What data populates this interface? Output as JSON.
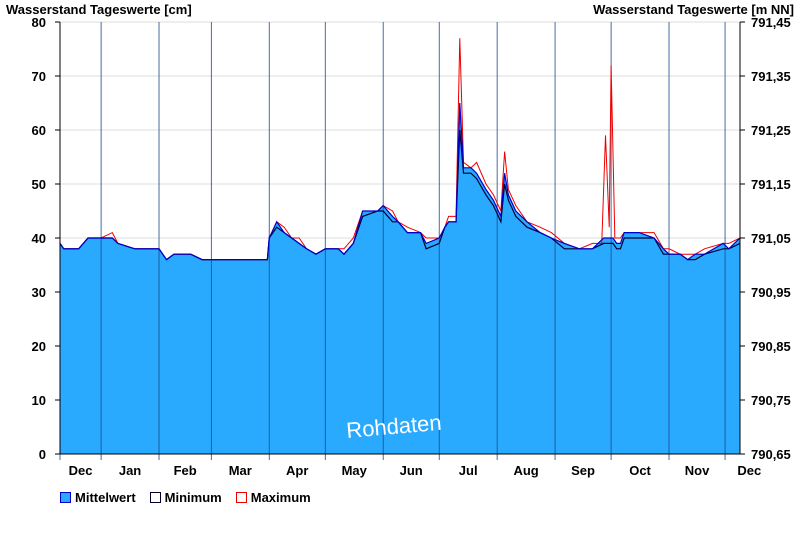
{
  "chart_data": {
    "type": "area",
    "title_left": "Wasserstand Tageswerte [cm]",
    "title_right": "Wasserstand Tageswerte [m NN]",
    "xlabel": "",
    "ylabel": "",
    "months": [
      "Dec",
      "Jan",
      "Feb",
      "Mar",
      "Apr",
      "May",
      "Jun",
      "Jul",
      "Aug",
      "Sep",
      "Oct",
      "Nov",
      "Dec"
    ],
    "month_start_days": [
      0,
      22,
      53,
      81,
      112,
      142,
      173,
      203,
      234,
      265,
      295,
      326,
      356
    ],
    "total_days": 364,
    "ylim": [
      0,
      80
    ],
    "yticks": [
      0,
      10,
      20,
      30,
      40,
      50,
      60,
      70,
      80
    ],
    "y2ticks": [
      "790,65",
      "790,75",
      "790,85",
      "790,95",
      "791,05",
      "791,15",
      "791,25",
      "791,35",
      "791,45"
    ],
    "watermark": "Rohdaten",
    "grid": true,
    "legend_position": "bottom-left",
    "series": [
      {
        "name": "Mittelwert",
        "color": "#2aaaff",
        "line_color": "#0000cc",
        "values": [
          [
            0,
            39
          ],
          [
            2,
            38
          ],
          [
            10,
            38
          ],
          [
            15,
            40
          ],
          [
            22,
            40
          ],
          [
            28,
            40
          ],
          [
            31,
            39
          ],
          [
            40,
            38
          ],
          [
            53,
            38
          ],
          [
            57,
            36
          ],
          [
            61,
            37
          ],
          [
            70,
            37
          ],
          [
            76,
            36
          ],
          [
            81,
            36
          ],
          [
            100,
            36
          ],
          [
            111,
            36
          ],
          [
            112,
            40
          ],
          [
            116,
            43
          ],
          [
            120,
            41
          ],
          [
            124,
            40
          ],
          [
            128,
            39
          ],
          [
            132,
            38
          ],
          [
            137,
            37
          ],
          [
            142,
            38
          ],
          [
            149,
            38
          ],
          [
            152,
            37
          ],
          [
            157,
            39
          ],
          [
            162,
            45
          ],
          [
            170,
            45
          ],
          [
            173,
            46
          ],
          [
            178,
            44
          ],
          [
            181,
            43
          ],
          [
            186,
            41
          ],
          [
            193,
            41
          ],
          [
            196,
            39
          ],
          [
            203,
            40
          ],
          [
            206,
            42
          ],
          [
            208,
            43
          ],
          [
            212,
            43
          ],
          [
            214,
            65
          ],
          [
            216,
            53
          ],
          [
            220,
            53
          ],
          [
            223,
            52
          ],
          [
            228,
            49
          ],
          [
            232,
            47
          ],
          [
            236,
            44
          ],
          [
            238,
            52
          ],
          [
            240,
            48
          ],
          [
            244,
            45
          ],
          [
            250,
            43
          ],
          [
            257,
            41
          ],
          [
            263,
            40
          ],
          [
            270,
            39
          ],
          [
            278,
            38
          ],
          [
            285,
            38
          ],
          [
            291,
            40
          ],
          [
            296,
            40
          ],
          [
            298,
            39
          ],
          [
            300,
            39
          ],
          [
            302,
            41
          ],
          [
            310,
            41
          ],
          [
            318,
            40
          ],
          [
            323,
            38
          ],
          [
            326,
            37
          ],
          [
            332,
            37
          ],
          [
            336,
            36
          ],
          [
            340,
            37
          ],
          [
            345,
            37
          ],
          [
            355,
            39
          ],
          [
            358,
            38
          ],
          [
            364,
            40
          ]
        ]
      },
      {
        "name": "Minimum",
        "color": "#ffffff",
        "line_color": "#000033",
        "values": [
          [
            0,
            39
          ],
          [
            2,
            38
          ],
          [
            10,
            38
          ],
          [
            15,
            40
          ],
          [
            22,
            40
          ],
          [
            28,
            40
          ],
          [
            31,
            39
          ],
          [
            40,
            38
          ],
          [
            53,
            38
          ],
          [
            57,
            36
          ],
          [
            61,
            37
          ],
          [
            70,
            37
          ],
          [
            76,
            36
          ],
          [
            81,
            36
          ],
          [
            100,
            36
          ],
          [
            111,
            36
          ],
          [
            112,
            40
          ],
          [
            116,
            42
          ],
          [
            120,
            41
          ],
          [
            124,
            40
          ],
          [
            128,
            39
          ],
          [
            132,
            38
          ],
          [
            137,
            37
          ],
          [
            142,
            38
          ],
          [
            149,
            38
          ],
          [
            152,
            37
          ],
          [
            157,
            39
          ],
          [
            162,
            44
          ],
          [
            170,
            45
          ],
          [
            173,
            45
          ],
          [
            178,
            43
          ],
          [
            181,
            43
          ],
          [
            186,
            41
          ],
          [
            193,
            41
          ],
          [
            196,
            38
          ],
          [
            203,
            39
          ],
          [
            206,
            42
          ],
          [
            208,
            43
          ],
          [
            212,
            43
          ],
          [
            214,
            60
          ],
          [
            216,
            52
          ],
          [
            220,
            52
          ],
          [
            223,
            51
          ],
          [
            228,
            48
          ],
          [
            232,
            46
          ],
          [
            236,
            43
          ],
          [
            238,
            50
          ],
          [
            240,
            47
          ],
          [
            244,
            44
          ],
          [
            250,
            42
          ],
          [
            257,
            41
          ],
          [
            263,
            40
          ],
          [
            270,
            38
          ],
          [
            278,
            38
          ],
          [
            285,
            38
          ],
          [
            291,
            39
          ],
          [
            296,
            39
          ],
          [
            298,
            38
          ],
          [
            300,
            38
          ],
          [
            302,
            40
          ],
          [
            310,
            40
          ],
          [
            318,
            40
          ],
          [
            323,
            37
          ],
          [
            326,
            37
          ],
          [
            332,
            37
          ],
          [
            336,
            36
          ],
          [
            340,
            36
          ],
          [
            345,
            37
          ],
          [
            355,
            38
          ],
          [
            358,
            38
          ],
          [
            364,
            39
          ]
        ]
      },
      {
        "name": "Maximum",
        "color": "#ffffff",
        "line_color": "#ee0000",
        "values": [
          [
            0,
            39
          ],
          [
            2,
            38
          ],
          [
            10,
            38
          ],
          [
            15,
            40
          ],
          [
            22,
            40
          ],
          [
            28,
            41
          ],
          [
            31,
            39
          ],
          [
            40,
            38
          ],
          [
            53,
            38
          ],
          [
            57,
            36
          ],
          [
            61,
            37
          ],
          [
            70,
            37
          ],
          [
            76,
            36
          ],
          [
            81,
            36
          ],
          [
            100,
            36
          ],
          [
            111,
            36
          ],
          [
            112,
            40
          ],
          [
            116,
            43
          ],
          [
            120,
            42
          ],
          [
            124,
            40
          ],
          [
            128,
            40
          ],
          [
            132,
            38
          ],
          [
            137,
            37
          ],
          [
            142,
            38
          ],
          [
            149,
            38
          ],
          [
            152,
            38
          ],
          [
            157,
            40
          ],
          [
            162,
            45
          ],
          [
            170,
            45
          ],
          [
            173,
            46
          ],
          [
            178,
            45
          ],
          [
            181,
            43
          ],
          [
            186,
            42
          ],
          [
            193,
            41
          ],
          [
            196,
            40
          ],
          [
            203,
            40
          ],
          [
            206,
            42
          ],
          [
            208,
            44
          ],
          [
            212,
            44
          ],
          [
            214,
            77
          ],
          [
            216,
            54
          ],
          [
            220,
            53
          ],
          [
            223,
            54
          ],
          [
            228,
            50
          ],
          [
            232,
            48
          ],
          [
            236,
            45
          ],
          [
            238,
            56
          ],
          [
            240,
            49
          ],
          [
            244,
            46
          ],
          [
            250,
            43
          ],
          [
            257,
            42
          ],
          [
            263,
            41
          ],
          [
            270,
            39
          ],
          [
            278,
            38
          ],
          [
            285,
            39
          ],
          [
            290,
            39
          ],
          [
            292,
            59
          ],
          [
            294,
            42
          ],
          [
            295,
            72
          ],
          [
            297,
            40
          ],
          [
            300,
            40
          ],
          [
            302,
            41
          ],
          [
            310,
            41
          ],
          [
            318,
            41
          ],
          [
            323,
            38
          ],
          [
            326,
            38
          ],
          [
            332,
            37
          ],
          [
            336,
            37
          ],
          [
            340,
            37
          ],
          [
            345,
            38
          ],
          [
            355,
            39
          ],
          [
            358,
            39
          ],
          [
            364,
            40
          ]
        ]
      }
    ]
  }
}
